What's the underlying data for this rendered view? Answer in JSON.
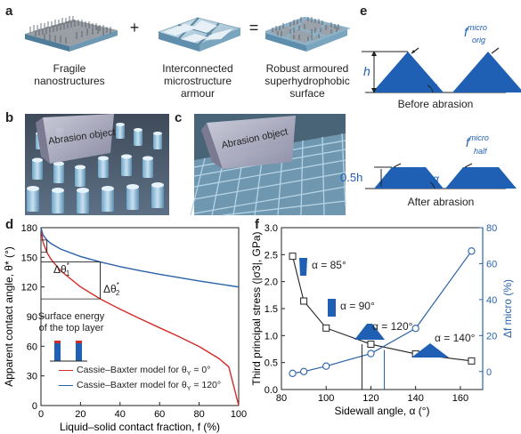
{
  "panel_a": {
    "letter": "a",
    "plus": "+",
    "equals": "=",
    "caption1": "Fragile\nnanostructures",
    "caption2": "Interconnected\nmicrostructure\narmour",
    "caption3": "Robust armoured\nsuperhydrophobic\nsurface"
  },
  "panel_b": {
    "letter": "b",
    "object_label": "Abrasion object"
  },
  "panel_c": {
    "letter": "c",
    "object_label": "Abrasion object"
  },
  "panel_e": {
    "letter": "e",
    "h_label": "h",
    "half_h_label": "0.5h",
    "alpha": "α",
    "f_orig_main": "f",
    "f_orig_sup": "micro",
    "f_orig_sub": "orig",
    "f_half_main": "f",
    "f_half_sup": "micro",
    "f_half_sub": "half",
    "before": "Before abrasion",
    "after": "After abrasion"
  },
  "panel_d_text": {
    "letter": "d",
    "delta1": "Δθ",
    "delta1_sub": "1",
    "delta1_sup": "*",
    "delta2": "Δθ",
    "delta2_sub": "2",
    "delta2_sup": "*",
    "inset_label": "Surface energy\nof the top layer",
    "legend1": "Cassie–Baxter model for θ",
    "legend1_sub": "Y",
    "legend1_tail": " = 0°",
    "legend2": "Cassie–Baxter model for θ",
    "legend2_sub": "Y",
    "legend2_tail": " = 120°"
  },
  "panel_f_text": {
    "letter": "f",
    "a85": "α = 85°",
    "a90": "α = 90°",
    "a120": "α = 120°",
    "a140": "α = 140°"
  },
  "colors": {
    "blue": "#2a62a8",
    "red": "#d42a2a",
    "shape_blue": "#1f5fb4",
    "black": "#222222"
  },
  "chart_data": [
    {
      "id": "d",
      "type": "line",
      "xlabel": "Liquid–solid contact fraction, f (%)",
      "ylabel": "Apparent contact angle, θ* (°)",
      "xlim": [
        0,
        100
      ],
      "ylim": [
        0,
        180
      ],
      "xticks": [
        0,
        20,
        40,
        60,
        80,
        100
      ],
      "yticks": [
        0,
        30,
        60,
        90,
        120,
        150,
        180
      ],
      "grid": false,
      "legend_position": "bottom-left",
      "series": [
        {
          "name": "Cassie–Baxter model for θY = 0°",
          "color": "red",
          "x": [
            0,
            1,
            3,
            5,
            10,
            20,
            30,
            40,
            50,
            60,
            70,
            80,
            90,
            95,
            100
          ],
          "y": [
            180,
            165.6,
            155.1,
            148.2,
            136.3,
            120.1,
            107.9,
            97.5,
            88.0,
            78.7,
            69.5,
            59.7,
            47.6,
            39.1,
            0
          ]
        },
        {
          "name": "Cassie–Baxter model for θY = 120°",
          "color": "blue",
          "x": [
            0,
            1,
            3,
            5,
            10,
            20,
            30,
            40,
            50,
            60,
            70,
            80,
            90,
            95,
            100
          ],
          "y": [
            180,
            172.8,
            167.5,
            164.0,
            158.3,
            150.8,
            145.3,
            140.6,
            136.5,
            132.8,
            129.4,
            126.1,
            123.0,
            121.5,
            120
          ]
        }
      ],
      "annotations": [
        {
          "label": "Δθ1*",
          "x": 3,
          "y_top": 167.5,
          "y_bottom": 155.1
        },
        {
          "label": "Δθ2*",
          "x": 30,
          "y_top": 145.3,
          "y_bottom": 107.9
        }
      ]
    },
    {
      "id": "f",
      "type": "scatter",
      "xlabel": "Sidewall angle, α (°)",
      "ylabel": "Third principal stress (|σ3|, GPa)",
      "ylabel_right": "Δf micro (%)",
      "xlim": [
        80,
        170
      ],
      "ylim": [
        0,
        3.0
      ],
      "ylim_right": [
        -10,
        80
      ],
      "xticks": [
        80,
        100,
        120,
        140,
        160
      ],
      "yticks": [
        0,
        0.5,
        1.0,
        1.5,
        2.0,
        2.5,
        3.0
      ],
      "yticks_right": [
        0,
        20,
        40,
        60,
        80
      ],
      "grid": false,
      "series": [
        {
          "name": "Third principal stress",
          "axis": "left",
          "marker": "square",
          "color": "black",
          "x": [
            85,
            90,
            100,
            120,
            140,
            165
          ],
          "y": [
            2.47,
            1.64,
            1.14,
            0.84,
            0.66,
            0.53
          ]
        },
        {
          "name": "Δf micro",
          "axis": "right",
          "marker": "circle",
          "color": "blue",
          "x": [
            85,
            90,
            100,
            120,
            140,
            165
          ],
          "y": [
            -1,
            0,
            3,
            10,
            24,
            67
          ]
        }
      ],
      "crossover_x": [
        116,
        126
      ]
    }
  ]
}
